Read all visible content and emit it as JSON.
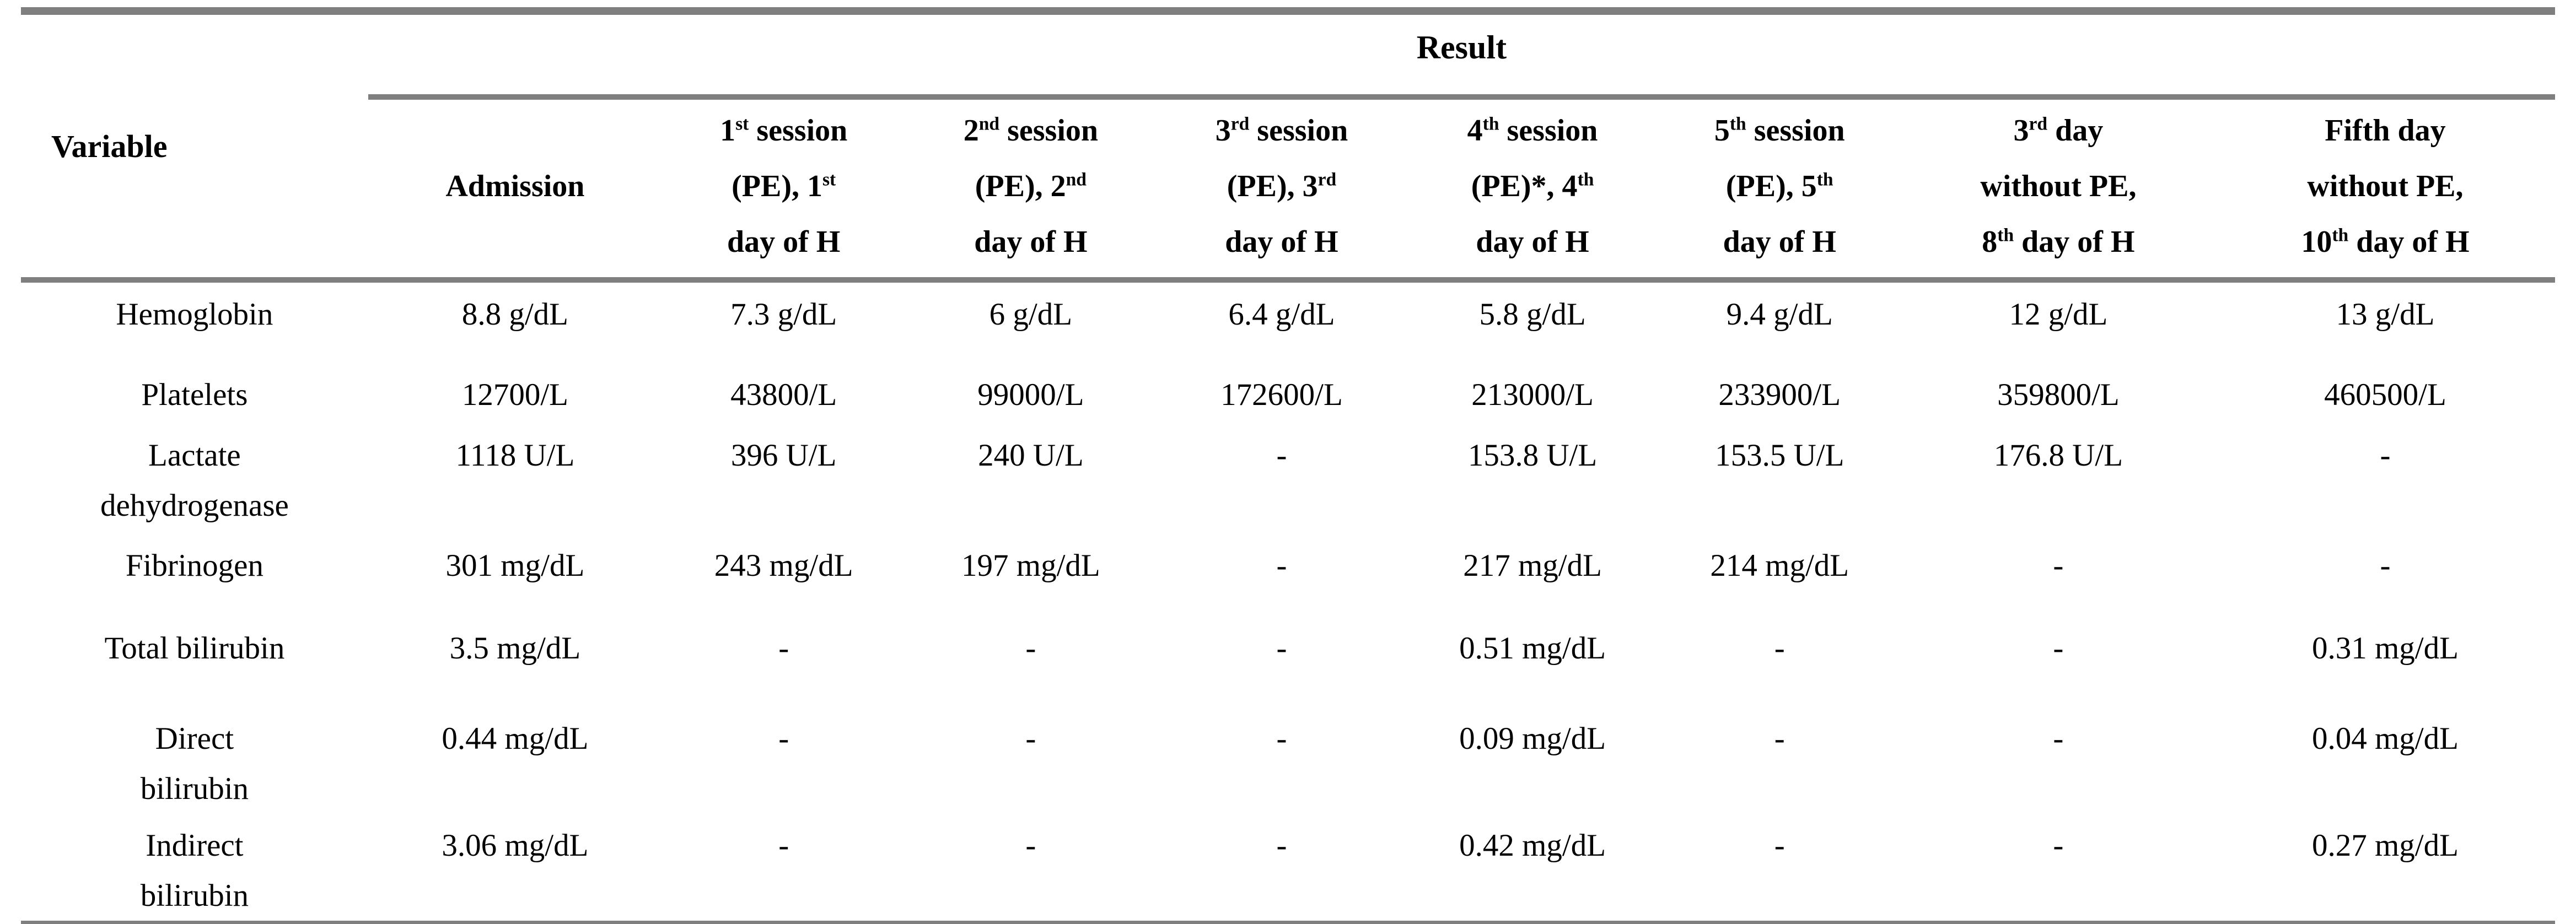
{
  "table": {
    "colors": {
      "rule_gray": "#7f7f7f",
      "text": "#000000",
      "background": "#ffffff"
    },
    "header": {
      "variable_label": "Variable",
      "result_label": "Result",
      "columns": [
        "Admission",
        "1^{st} session\n(PE), 1^{st}\nday of H",
        "2^{nd} session\n(PE), 2^{nd}\nday of H",
        "3^{rd} session\n(PE), 3^{rd}\nday of H",
        "4^{th} session\n(PE)*, 4^{th}\nday of H",
        "5^{th} session\n(PE), 5^{th}\nday of H",
        "3^{rd} day\nwithout PE,\n8^{th} day of H",
        "Fifth day\nwithout PE,\n10^{th} day of H"
      ]
    },
    "rows": [
      {
        "label": "Hemoglobin",
        "values": [
          "8.8 g/dL",
          "7.3 g/dL",
          "6 g/dL",
          "6.4 g/dL",
          "5.8 g/dL",
          "9.4 g/dL",
          "12 g/dL",
          "13 g/dL"
        ]
      },
      {
        "label": "Platelets",
        "values": [
          "12700/L",
          "43800/L",
          "99000/L",
          "172600/L",
          "213000/L",
          "233900/L",
          "359800/L",
          "460500/L"
        ]
      },
      {
        "label": "Lactate\ndehydrogenase",
        "values": [
          "1118 U/L",
          "396 U/L",
          "240 U/L",
          "-",
          "153.8 U/L",
          "153.5 U/L",
          "176.8 U/L",
          "-"
        ]
      },
      {
        "label": "Fibrinogen",
        "values": [
          "301 mg/dL",
          "243 mg/dL",
          "197 mg/dL",
          "-",
          "217 mg/dL",
          "214 mg/dL",
          "-",
          "-"
        ]
      },
      {
        "label": "Total bilirubin",
        "values": [
          "3.5 mg/dL",
          "-",
          "-",
          "-",
          "0.51 mg/dL",
          "-",
          "-",
          "0.31 mg/dL"
        ]
      },
      {
        "label": "Direct\nbilirubin",
        "values": [
          "0.44 mg/dL",
          "-",
          "-",
          "-",
          "0.09 mg/dL",
          "-",
          "-",
          "0.04 mg/dL"
        ]
      },
      {
        "label": "Indirect\nbilirubin",
        "values": [
          "3.06 mg/dL",
          "-",
          "-",
          "-",
          "0.42 mg/dL",
          "-",
          "-",
          "0.27 mg/dL"
        ]
      }
    ]
  }
}
